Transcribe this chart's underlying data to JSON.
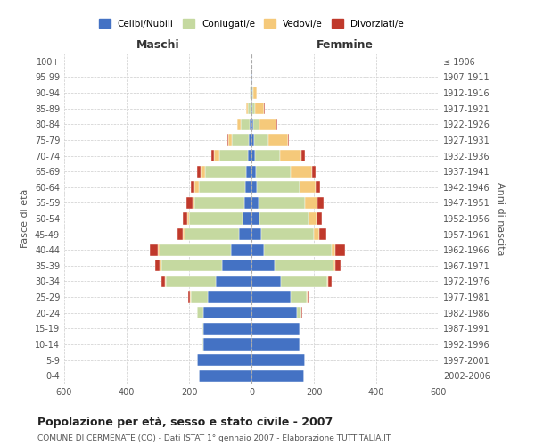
{
  "age_groups": [
    "100+",
    "95-99",
    "90-94",
    "85-89",
    "80-84",
    "75-79",
    "70-74",
    "65-69",
    "60-64",
    "55-59",
    "50-54",
    "45-49",
    "40-44",
    "35-39",
    "30-34",
    "25-29",
    "20-24",
    "15-19",
    "10-14",
    "5-9",
    "0-4"
  ],
  "birth_years": [
    "≤ 1906",
    "1907-1911",
    "1912-1916",
    "1917-1921",
    "1922-1926",
    "1927-1931",
    "1932-1936",
    "1937-1941",
    "1942-1946",
    "1947-1951",
    "1952-1956",
    "1957-1961",
    "1962-1966",
    "1967-1971",
    "1972-1976",
    "1977-1981",
    "1982-1986",
    "1987-1991",
    "1992-1996",
    "1997-2001",
    "2002-2006"
  ],
  "male": {
    "celibi": [
      1,
      1,
      2,
      4,
      5,
      8,
      12,
      18,
      20,
      22,
      30,
      40,
      65,
      95,
      115,
      140,
      155,
      155,
      155,
      175,
      170
    ],
    "coniugati": [
      0,
      0,
      3,
      8,
      30,
      55,
      90,
      130,
      150,
      160,
      170,
      175,
      230,
      195,
      160,
      55,
      18,
      2,
      2,
      0,
      0
    ],
    "vedovi": [
      0,
      0,
      1,
      4,
      10,
      12,
      18,
      15,
      12,
      8,
      6,
      5,
      4,
      3,
      2,
      2,
      0,
      0,
      0,
      0,
      0
    ],
    "divorziati": [
      0,
      0,
      0,
      0,
      2,
      3,
      8,
      10,
      12,
      18,
      15,
      18,
      28,
      15,
      12,
      5,
      2,
      0,
      0,
      0,
      0
    ]
  },
  "female": {
    "nubili": [
      1,
      2,
      3,
      4,
      5,
      8,
      10,
      15,
      18,
      22,
      25,
      32,
      40,
      75,
      95,
      125,
      145,
      155,
      155,
      172,
      168
    ],
    "coniugate": [
      0,
      0,
      3,
      8,
      20,
      45,
      80,
      110,
      135,
      148,
      158,
      168,
      218,
      188,
      148,
      52,
      15,
      2,
      2,
      0,
      0
    ],
    "vedove": [
      0,
      2,
      10,
      28,
      55,
      65,
      70,
      68,
      52,
      40,
      25,
      18,
      10,
      5,
      3,
      2,
      0,
      0,
      0,
      0,
      0
    ],
    "divorziate": [
      0,
      0,
      0,
      2,
      2,
      3,
      10,
      12,
      15,
      22,
      18,
      22,
      32,
      18,
      10,
      5,
      2,
      0,
      0,
      0,
      0
    ]
  },
  "colors": {
    "celibi": "#4472C4",
    "coniugati": "#C5D9A0",
    "vedovi": "#F5C97A",
    "divorziati": "#C0392B"
  },
  "xlim": 600,
  "title": "Popolazione per età, sesso e stato civile - 2007",
  "subtitle": "COMUNE DI CERMENATE (CO) - Dati ISTAT 1° gennaio 2007 - Elaborazione TUTTITALIA.IT",
  "ylabel_left": "Fasce di età",
  "ylabel_right": "Anni di nascita",
  "xlabel_left": "Maschi",
  "xlabel_right": "Femmine",
  "legend_labels": [
    "Celibi/Nubili",
    "Coniugati/e",
    "Vedovi/e",
    "Divorziati/e"
  ],
  "background_color": "#ffffff",
  "grid_color": "#cccccc"
}
